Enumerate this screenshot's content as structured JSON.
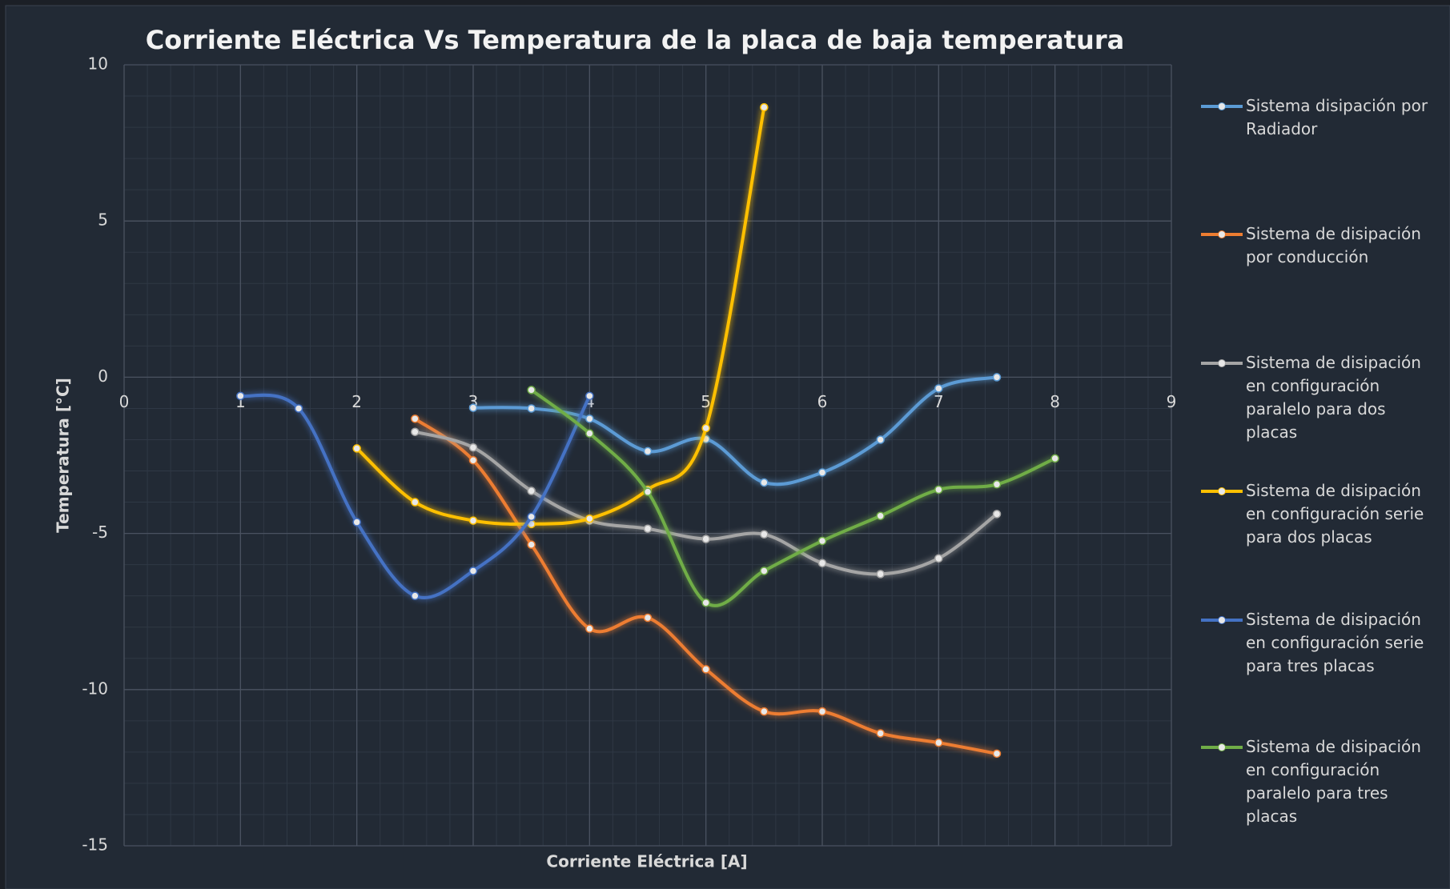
{
  "chart_data": {
    "type": "line",
    "title": "Corriente Eléctrica Vs  Temperatura de la placa de  baja temperatura",
    "x_label": "Corriente Eléctrica [A]",
    "y_label": "Temperatura [°C]",
    "xlim": [
      0,
      9
    ],
    "xticks": [
      0,
      1,
      2,
      3,
      4,
      5,
      6,
      7,
      8,
      9
    ],
    "ylim": [
      -15,
      10
    ],
    "yticks": [
      -15,
      -10,
      -5,
      0,
      5,
      10
    ],
    "grid": true,
    "smooth": true,
    "legend": "right",
    "series": [
      {
        "name": "Sistema disipación por Radiador",
        "color": "#5b9bd5",
        "x": [
          3,
          3.5,
          4,
          4.5,
          5,
          5.5,
          6,
          6.5,
          7,
          7.5
        ],
        "values": [
          -0.98,
          -1.0,
          -1.33,
          -2.37,
          -1.98,
          -3.37,
          -3.05,
          -2.0,
          -0.36,
          0
        ]
      },
      {
        "name": "Sistema de disipación por conducción",
        "color": "#ed7d31",
        "x": [
          2.5,
          3,
          3.5,
          4,
          4.5,
          5,
          5.5,
          6,
          6.5,
          7,
          7.5
        ],
        "values": [
          -1.33,
          -2.66,
          -5.36,
          -8.05,
          -7.7,
          -9.35,
          -10.7,
          -10.7,
          -11.4,
          -11.7,
          -12.05
        ]
      },
      {
        "name": "Sistema de disipación en configuración paralelo para dos placas",
        "color": "#a5a5a5",
        "x": [
          2.5,
          3,
          3.5,
          4,
          4.5,
          5,
          5.5,
          6,
          6.5,
          7,
          7.5
        ],
        "values": [
          -1.75,
          -2.25,
          -3.64,
          -4.59,
          -4.85,
          -5.18,
          -5.03,
          -5.95,
          -6.3,
          -5.8,
          -4.38
        ]
      },
      {
        "name": "Sistema de disipación en configuración serie para dos placas",
        "color": "#ffc000",
        "x": [
          2,
          2.5,
          3,
          3.5,
          4,
          4.5,
          5,
          5.5
        ],
        "values": [
          -2.28,
          -4.0,
          -4.59,
          -4.7,
          -4.53,
          -3.6,
          -1.63,
          8.64
        ]
      },
      {
        "name": "Sistema de disipación en configuración serie para tres placas",
        "color": "#4472c4",
        "x": [
          1,
          1.5,
          2,
          2.5,
          3,
          3.5,
          4
        ],
        "values": [
          -0.6,
          -1.0,
          -4.64,
          -7.0,
          -6.2,
          -4.47,
          -0.6
        ]
      },
      {
        "name": "Sistema de disipación en configuración paralelo para tres placas",
        "color": "#70ad47",
        "x": [
          3.5,
          4,
          4.5,
          5,
          5.5,
          6,
          6.5,
          7,
          7.5,
          8
        ],
        "values": [
          -0.41,
          -1.8,
          -3.67,
          -7.22,
          -6.2,
          -5.24,
          -4.44,
          -3.6,
          -3.43,
          -2.6
        ]
      }
    ]
  }
}
